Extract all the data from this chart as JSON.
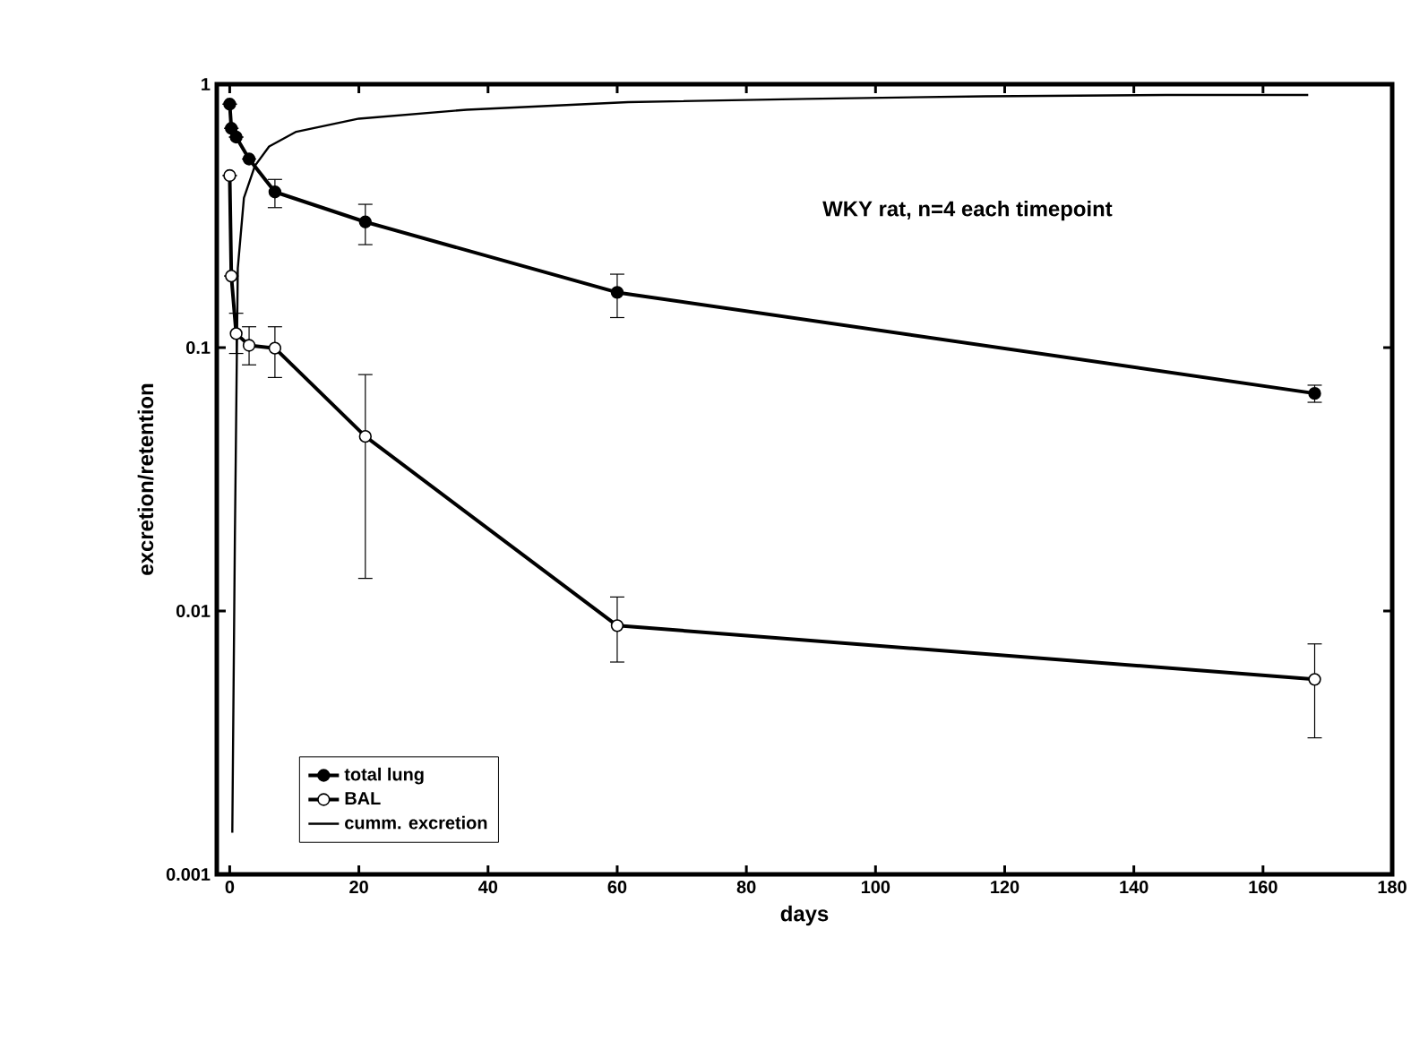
{
  "chart_data": {
    "type": "line",
    "xlabel": "days",
    "ylabel": "excretion/retention",
    "xlim": [
      -2,
      180
    ],
    "xticks": [
      0,
      20,
      40,
      60,
      80,
      100,
      120,
      140,
      160,
      180
    ],
    "ylim": [
      0.001,
      1
    ],
    "yticks": [
      0.001,
      0.01,
      0.1,
      1
    ],
    "log": "y",
    "legend": "bottom left",
    "grid": false,
    "annotations": [
      "WKY rat, n=4 each timepoint"
    ],
    "series": [
      {
        "name": "total lung",
        "color": "#000000",
        "marker": "circle",
        "x": [
          0,
          0.25,
          1,
          3,
          7,
          21,
          60,
          168
        ],
        "values": [
          0.84,
          0.68,
          0.63,
          0.52,
          0.39,
          0.3,
          0.162,
          0.067
        ],
        "errors": [
          null,
          null,
          null,
          null,
          [
            0.34,
            0.435
          ],
          [
            0.246,
            0.35
          ],
          [
            0.13,
            0.19
          ],
          [
            0.062,
            0.072
          ]
        ]
      },
      {
        "name": "BAL",
        "color": "#000000",
        "marker": "circle",
        "x": [
          0,
          0.25,
          1,
          3,
          7,
          21,
          60,
          168
        ],
        "values": [
          0.45,
          0.187,
          0.113,
          0.102,
          0.0995,
          0.046,
          0.0088,
          0.0055
        ],
        "errors": [
          null,
          null,
          [
            0.095,
            0.135
          ],
          [
            0.086,
            0.12
          ],
          [
            0.077,
            0.12
          ],
          [
            0.0133,
            0.079
          ],
          [
            0.0064,
            0.0113
          ],
          [
            0.0033,
            0.0075
          ]
        ]
      },
      {
        "name": "cumm. excretion",
        "color": "#000000",
        "marker": "none",
        "x": [
          0.4,
          0.8,
          1.25,
          2.2,
          3.9,
          6.1,
          10.3,
          20,
          36.7,
          61.7,
          89.4,
          117,
          145,
          167
        ],
        "values": [
          0.00144,
          0.019,
          0.2,
          0.37,
          0.49,
          0.58,
          0.66,
          0.74,
          0.8,
          0.855,
          0.88,
          0.9,
          0.91,
          0.91
        ]
      }
    ]
  }
}
